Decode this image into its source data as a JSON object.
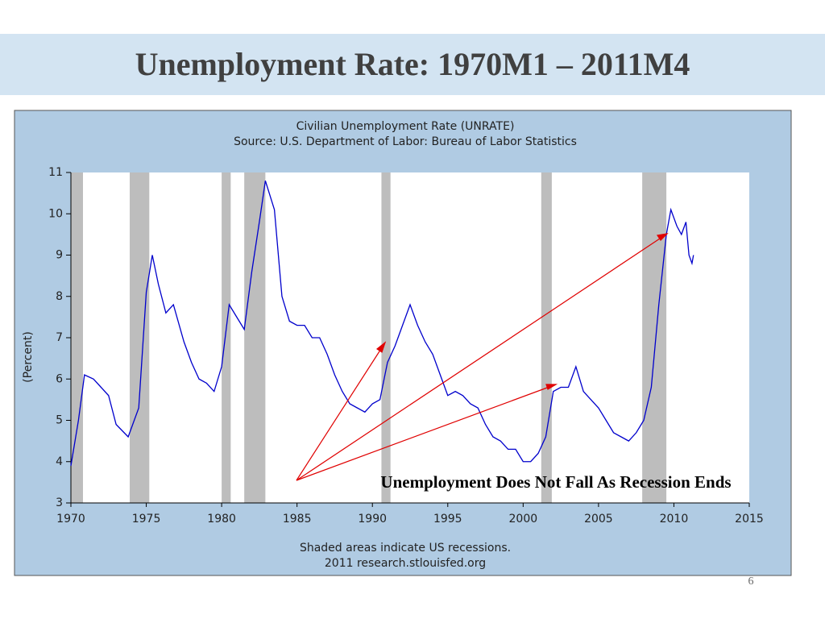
{
  "slide": {
    "title": "Unemployment Rate:  1970M1 – 2011M4",
    "page_number": "6"
  },
  "chart_data": {
    "type": "line",
    "title": "Civilian Unemployment Rate (UNRATE)",
    "subtitle": "Source: U.S. Department of Labor: Bureau of Labor Statistics",
    "y_label": "(Percent)",
    "annotation": "Unemployment Does Not Fall As Recession Ends",
    "footnotes": [
      "Shaded areas indicate US recessions.",
      "2011 research.stlouisfed.org"
    ],
    "color": "#0000cc",
    "recession_color": "#bdbdbd",
    "recessions": [
      [
        1970,
        1970.8
      ],
      [
        1973.9,
        1975.2
      ],
      [
        1980.0,
        1980.6
      ],
      [
        1981.5,
        1982.9
      ],
      [
        1990.6,
        1991.2
      ],
      [
        2001.2,
        2001.9
      ],
      [
        2007.9,
        2009.5
      ]
    ],
    "x": [
      1970.0,
      1970.5,
      1970.9,
      1971.5,
      1972.0,
      1972.5,
      1973.0,
      1973.8,
      1974.5,
      1975.0,
      1975.4,
      1975.8,
      1976.3,
      1976.8,
      1977.5,
      1978.0,
      1978.5,
      1979.0,
      1979.5,
      1980.0,
      1980.5,
      1981.0,
      1981.5,
      1982.0,
      1982.5,
      1982.9,
      1983.5,
      1984.0,
      1984.5,
      1985.0,
      1985.5,
      1986.0,
      1986.5,
      1987.0,
      1987.5,
      1988.0,
      1988.5,
      1989.0,
      1989.5,
      1990.0,
      1990.5,
      1991.0,
      1991.5,
      1992.0,
      1992.5,
      1993.0,
      1993.5,
      1994.0,
      1994.5,
      1995.0,
      1995.5,
      1996.0,
      1996.5,
      1997.0,
      1997.5,
      1998.0,
      1998.5,
      1999.0,
      1999.5,
      2000.0,
      2000.5,
      2001.0,
      2001.5,
      2002.0,
      2002.5,
      2003.0,
      2003.5,
      2004.0,
      2004.5,
      2005.0,
      2005.5,
      2006.0,
      2006.5,
      2007.0,
      2007.5,
      2008.0,
      2008.5,
      2009.0,
      2009.5,
      2009.8,
      2010.2,
      2010.5,
      2010.8,
      2011.0,
      2011.2,
      2011.3
    ],
    "values": [
      3.9,
      5.0,
      6.1,
      6.0,
      5.8,
      5.6,
      4.9,
      4.6,
      5.3,
      8.1,
      9.0,
      8.3,
      7.6,
      7.8,
      6.9,
      6.4,
      6.0,
      5.9,
      5.7,
      6.3,
      7.8,
      7.5,
      7.2,
      8.6,
      9.8,
      10.8,
      10.1,
      8.0,
      7.4,
      7.3,
      7.3,
      7.0,
      7.0,
      6.6,
      6.1,
      5.7,
      5.4,
      5.3,
      5.2,
      5.4,
      5.5,
      6.4,
      6.8,
      7.3,
      7.8,
      7.3,
      6.9,
      6.6,
      6.1,
      5.6,
      5.7,
      5.6,
      5.4,
      5.3,
      4.9,
      4.6,
      4.5,
      4.3,
      4.3,
      4.0,
      4.0,
      4.2,
      4.6,
      5.7,
      5.8,
      5.8,
      6.3,
      5.7,
      5.5,
      5.3,
      5.0,
      4.7,
      4.6,
      4.5,
      4.7,
      5.0,
      5.8,
      7.8,
      9.5,
      10.1,
      9.7,
      9.5,
      9.8,
      9.0,
      8.8,
      9.0
    ],
    "xlim": [
      1970,
      2015
    ],
    "xticks": [
      1970,
      1975,
      1980,
      1985,
      1990,
      1995,
      2000,
      2005,
      2010,
      2015
    ],
    "ylim": [
      3,
      11
    ],
    "yticks": [
      3,
      4,
      5,
      6,
      7,
      8,
      9,
      10,
      11
    ],
    "grid": false
  }
}
